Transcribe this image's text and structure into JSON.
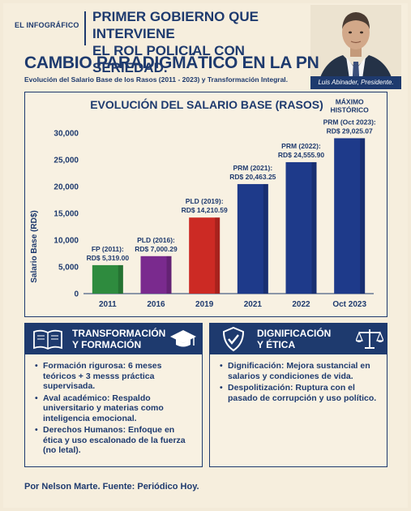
{
  "header": {
    "brand": "EL INFOGRÁFICO",
    "headline_line1": "PRIMER GOBIERNO QUE INTERVIENE",
    "headline_line2": "EL ROL POLICIAL CON SERIEDAD.",
    "portrait_caption": "Luis Abinader, Presidente."
  },
  "section": {
    "title": "CAMBIO PARADIGMÁTICO EN LA PN",
    "subtitle": "Evolución del Salario Base de los Rasos (2011 - 2023) y Transformación Integral."
  },
  "chart_data": {
    "type": "bar",
    "title": "EVOLUCIÓN DEL SALARIO BASE (RASOS)",
    "xlabel": "",
    "ylabel": "Salario Base (RD$)",
    "ylim": [
      0,
      30000
    ],
    "yticks": [
      "0",
      "5,000",
      "10,000",
      "15,000",
      "20,000",
      "25,000",
      "30,000"
    ],
    "categories": [
      "2011",
      "2016",
      "2019",
      "2021",
      "2022",
      "Oct 2023"
    ],
    "values": [
      5319.0,
      7000.29,
      14210.59,
      20463.25,
      24555.9,
      29025.07
    ],
    "bar_labels_line1": [
      "FP (2011):",
      "PLD (2016):",
      "PLD (2019):",
      "PRM (2021):",
      "PRM (2022):",
      "PRM (Oct 2023):"
    ],
    "bar_labels_line2": [
      "RD$ 5,319.00",
      "RD$ 7,000.29",
      "RD$ 14,210.59",
      "RD$ 20,463.25",
      "RD$ 24,555.90",
      "RD$ 29,025.07"
    ],
    "annotation_line1": "MÁXIMO",
    "annotation_line2": "HISTÓRICO",
    "colors": [
      "#2e8b3e",
      "#7a2a8e",
      "#cc2a24",
      "#1e3a8a",
      "#1e3a8a",
      "#1e3a8a"
    ],
    "grid": false,
    "legend": "none"
  },
  "info_left": {
    "title_line1": "TRANSFORMACIÓN",
    "title_line2": "Y FORMACIÓN",
    "items": [
      "Formación rigurosa: 6 meses teóricos + 3 messs práctica supervisada.",
      "Aval académico: Respaldo universitario y materias como inteligencia emocional.",
      "Derechos Humanos: Enfoque en ética y uso escalonado de la fuerza (no letal)."
    ]
  },
  "info_right": {
    "title_line1": "DIGNIFICACIÓN",
    "title_line2": "Y ÉTICA",
    "items": [
      "Dignificación: Mejora sustancial en salarios y condiciones de vida.",
      "Despolitización: Ruptura con el pasado de corrupción y uso político."
    ]
  },
  "footer": {
    "credit": "Por Nelson Marte. Fuente: Periódico Hoy."
  },
  "icons": [
    "book-icon",
    "graduation-cap-icon",
    "shield-check-icon",
    "scales-icon"
  ]
}
